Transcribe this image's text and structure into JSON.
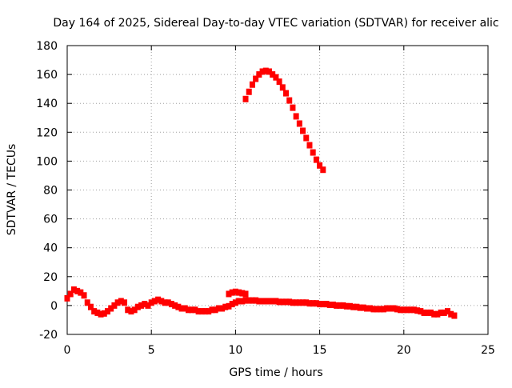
{
  "chart_data": {
    "type": "scatter",
    "title": "Day 164 of 2025, Sidereal Day-to-day VTEC variation (SDTVAR) for receiver alic",
    "xlabel": "GPS time / hours",
    "ylabel": "SDTVAR / TECUs",
    "xlim": [
      0,
      25
    ],
    "ylim": [
      -20,
      180
    ],
    "xticks": [
      0,
      5,
      10,
      15,
      20,
      25
    ],
    "yticks": [
      -20,
      0,
      20,
      40,
      60,
      80,
      100,
      120,
      140,
      160,
      180
    ],
    "grid": true,
    "marker_color": "#ff0000",
    "series": [
      {
        "name": "SDTVAR",
        "points": [
          [
            0.0,
            5
          ],
          [
            0.2,
            8
          ],
          [
            0.4,
            11
          ],
          [
            0.6,
            10
          ],
          [
            0.8,
            9
          ],
          [
            1.0,
            7
          ],
          [
            1.2,
            2
          ],
          [
            1.4,
            -1
          ],
          [
            1.6,
            -4
          ],
          [
            1.8,
            -5
          ],
          [
            2.0,
            -6
          ],
          [
            2.2,
            -5.5
          ],
          [
            2.4,
            -4
          ],
          [
            2.6,
            -2
          ],
          [
            2.8,
            0
          ],
          [
            3.0,
            2
          ],
          [
            3.2,
            3
          ],
          [
            3.4,
            2
          ],
          [
            3.6,
            -3
          ],
          [
            3.8,
            -4
          ],
          [
            4.0,
            -3
          ],
          [
            4.2,
            -1
          ],
          [
            4.4,
            0
          ],
          [
            4.6,
            1
          ],
          [
            4.8,
            0
          ],
          [
            5.0,
            2
          ],
          [
            5.2,
            3
          ],
          [
            5.4,
            4
          ],
          [
            5.6,
            3
          ],
          [
            5.8,
            2
          ],
          [
            6.0,
            2
          ],
          [
            6.2,
            1
          ],
          [
            6.4,
            0
          ],
          [
            6.6,
            -1
          ],
          [
            6.8,
            -2
          ],
          [
            7.0,
            -2
          ],
          [
            7.2,
            -3
          ],
          [
            7.4,
            -3
          ],
          [
            7.6,
            -3
          ],
          [
            7.8,
            -4
          ],
          [
            8.0,
            -4
          ],
          [
            8.2,
            -4
          ],
          [
            8.4,
            -4
          ],
          [
            8.6,
            -3
          ],
          [
            8.8,
            -3
          ],
          [
            9.0,
            -2
          ],
          [
            9.2,
            -2
          ],
          [
            9.4,
            -1
          ],
          [
            9.6,
            -0.5
          ],
          [
            9.8,
            1
          ],
          [
            10.0,
            2
          ],
          [
            10.2,
            3
          ],
          [
            10.4,
            3
          ],
          [
            10.6,
            3.5
          ],
          [
            10.8,
            3.5
          ],
          [
            11.0,
            3.5
          ],
          [
            11.2,
            3.5
          ],
          [
            11.4,
            3
          ],
          [
            11.6,
            3
          ],
          [
            11.8,
            3
          ],
          [
            12.0,
            3
          ],
          [
            12.2,
            3
          ],
          [
            12.4,
            3
          ],
          [
            12.6,
            2.5
          ],
          [
            12.8,
            2.5
          ],
          [
            13.0,
            2.5
          ],
          [
            13.2,
            2.5
          ],
          [
            13.4,
            2
          ],
          [
            13.6,
            2
          ],
          [
            13.8,
            2
          ],
          [
            14.0,
            2
          ],
          [
            14.2,
            2
          ],
          [
            14.4,
            1.5
          ],
          [
            14.6,
            1.5
          ],
          [
            14.8,
            1.5
          ],
          [
            15.0,
            1
          ],
          [
            15.2,
            1
          ],
          [
            15.4,
            1
          ],
          [
            15.6,
            0.5
          ],
          [
            15.8,
            0.5
          ],
          [
            16.0,
            0
          ],
          [
            16.2,
            0
          ],
          [
            16.4,
            0
          ],
          [
            16.6,
            -0.5
          ],
          [
            16.8,
            -0.5
          ],
          [
            17.0,
            -1
          ],
          [
            17.2,
            -1
          ],
          [
            17.4,
            -1.5
          ],
          [
            17.6,
            -1.5
          ],
          [
            17.8,
            -2
          ],
          [
            18.0,
            -2
          ],
          [
            18.2,
            -2.5
          ],
          [
            18.4,
            -2.5
          ],
          [
            18.6,
            -2.5
          ],
          [
            18.8,
            -2.5
          ],
          [
            19.0,
            -2
          ],
          [
            19.2,
            -2
          ],
          [
            19.4,
            -2
          ],
          [
            19.6,
            -2.5
          ],
          [
            19.8,
            -3
          ],
          [
            20.0,
            -3
          ],
          [
            20.2,
            -3
          ],
          [
            20.4,
            -3
          ],
          [
            20.6,
            -3
          ],
          [
            20.8,
            -3.5
          ],
          [
            21.0,
            -4
          ],
          [
            21.2,
            -5
          ],
          [
            21.4,
            -5
          ],
          [
            21.6,
            -5
          ],
          [
            21.8,
            -6
          ],
          [
            22.0,
            -6
          ],
          [
            22.2,
            -5
          ],
          [
            22.4,
            -5
          ],
          [
            22.6,
            -4
          ],
          [
            22.8,
            -6
          ],
          [
            23.0,
            -7
          ],
          [
            9.6,
            8
          ],
          [
            9.8,
            9
          ],
          [
            10.0,
            9.5
          ],
          [
            10.2,
            9
          ],
          [
            10.4,
            8.5
          ],
          [
            10.6,
            8
          ],
          [
            10.6,
            143
          ],
          [
            10.8,
            148
          ],
          [
            11.0,
            153
          ],
          [
            11.2,
            157
          ],
          [
            11.4,
            160
          ],
          [
            11.6,
            162
          ],
          [
            11.8,
            162.5
          ],
          [
            12.0,
            162
          ],
          [
            12.2,
            160
          ],
          [
            12.4,
            158
          ],
          [
            12.6,
            155
          ],
          [
            12.8,
            151
          ],
          [
            13.0,
            147
          ],
          [
            13.2,
            142
          ],
          [
            13.4,
            137
          ],
          [
            13.6,
            131
          ],
          [
            13.8,
            126
          ],
          [
            14.0,
            121
          ],
          [
            14.2,
            116
          ],
          [
            14.4,
            111
          ],
          [
            14.6,
            106
          ],
          [
            14.8,
            101
          ],
          [
            15.0,
            97
          ],
          [
            15.2,
            94
          ]
        ]
      }
    ]
  }
}
